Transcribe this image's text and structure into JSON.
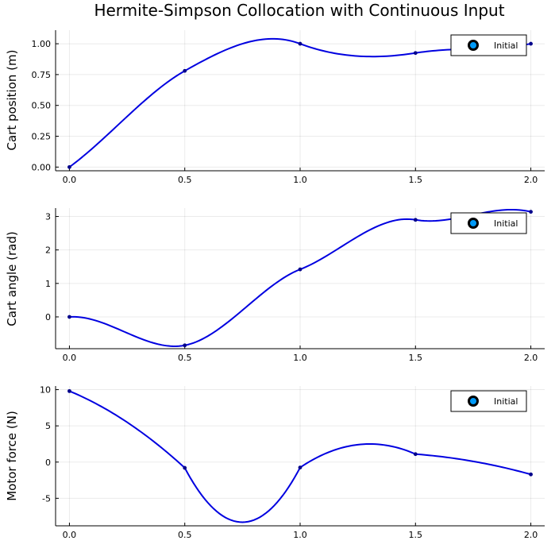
{
  "figure": {
    "title": "Hermite-Simpson Collocation with Continuous Input"
  },
  "colors": {
    "line": "#0000e0",
    "knot": "#00008b",
    "legend_marker_fill": "#009af9",
    "legend_marker_stroke": "#000000"
  },
  "chart_data": [
    {
      "type": "line",
      "ylabel": "Cart position (m)",
      "xlim": [
        -0.06,
        2.06
      ],
      "ylim": [
        -0.03,
        1.11
      ],
      "xticks": [
        0.0,
        0.5,
        1.0,
        1.5,
        2.0
      ],
      "xtick_labels": [
        "0.0",
        "0.5",
        "1.0",
        "1.5",
        "2.0"
      ],
      "yticks": [
        0.0,
        0.25,
        0.5,
        0.75,
        1.0
      ],
      "ytick_labels": [
        "0.00",
        "0.25",
        "0.50",
        "0.75",
        "1.00"
      ],
      "grid": true,
      "legend": {
        "position": "top-right",
        "entries": [
          "Initial"
        ]
      },
      "series": [
        {
          "name": "Initial",
          "x": [
            0.0,
            0.5,
            1.0,
            1.5,
            2.0
          ],
          "y": [
            0.0,
            0.78,
            1.0,
            0.925,
            1.0
          ],
          "midpoints": [
            0.41,
            1.0,
            0.9,
            0.96
          ],
          "curve": "cubic-hermite-with-collocation-midpoints"
        }
      ]
    },
    {
      "type": "line",
      "ylabel": "Cart angle (rad)",
      "xlim": [
        -0.06,
        2.06
      ],
      "ylim": [
        -0.95,
        3.25
      ],
      "xticks": [
        0.0,
        0.5,
        1.0,
        1.5,
        2.0
      ],
      "xtick_labels": [
        "0.0",
        "0.5",
        "1.0",
        "1.5",
        "2.0"
      ],
      "yticks": [
        0,
        1,
        2,
        3
      ],
      "ytick_labels": [
        "0",
        "1",
        "2",
        "3"
      ],
      "grid": true,
      "legend": {
        "position": "top-right",
        "entries": [
          "Initial"
        ]
      },
      "series": [
        {
          "name": "Initial",
          "x": [
            0.0,
            0.5,
            1.0,
            1.5,
            2.0
          ],
          "y": [
            0.0,
            -0.85,
            1.42,
            2.9,
            3.14
          ],
          "midpoints": [
            -0.48,
            0.2,
            2.4,
            3.05
          ],
          "curve": "cubic-hermite-with-collocation-midpoints"
        }
      ]
    },
    {
      "type": "line",
      "ylabel": "Motor force (N)",
      "xlim": [
        -0.06,
        2.06
      ],
      "ylim": [
        -8.8,
        10.5
      ],
      "xticks": [
        0.0,
        0.5,
        1.0,
        1.5,
        2.0
      ],
      "xtick_labels": [
        "0.0",
        "0.5",
        "1.0",
        "1.5",
        "2.0"
      ],
      "yticks": [
        -5,
        0,
        5,
        10
      ],
      "ytick_labels": [
        "-5",
        "0",
        "5",
        "10"
      ],
      "grid": true,
      "legend": {
        "position": "top-right",
        "entries": [
          "Initial"
        ]
      },
      "series": [
        {
          "name": "Initial",
          "x": [
            0.0,
            0.5,
            1.0,
            1.5,
            2.0
          ],
          "y": [
            9.8,
            -0.8,
            -0.75,
            1.1,
            -1.7
          ],
          "midpoints": [
            5.5,
            -8.3,
            2.4,
            0.1
          ],
          "curve": "quadratic-through-midpoint"
        }
      ]
    }
  ]
}
